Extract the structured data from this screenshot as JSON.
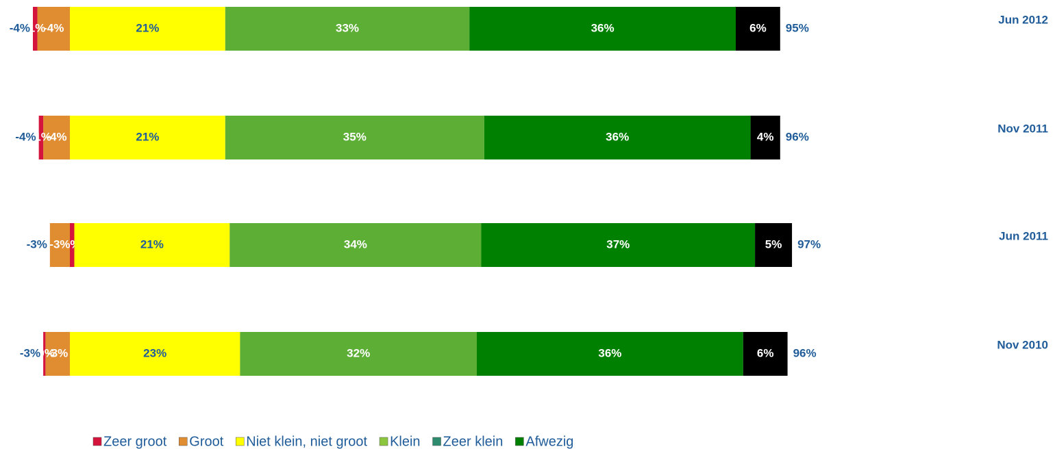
{
  "chart_data": {
    "type": "diverging-stacked-bar",
    "categories": [
      "Jun 2012",
      "Nov 2011",
      "Jun 2011",
      "Nov 2010"
    ],
    "series": [
      {
        "name": "Zeer groot",
        "color": "#d4143c",
        "legend_color": "#d4143c",
        "label_color": "#ffffff",
        "values": [
          -0.6,
          -0.6,
          0.6,
          -0.3
        ],
        "value_labels": [
          "-1%",
          "-1%",
          "1%",
          "-0%"
        ]
      },
      {
        "name": "Groot",
        "color": "#e08c30",
        "legend_color": "#e08c30",
        "label_color": "#ffffff",
        "values": [
          -4.4,
          -3.6,
          -2.7,
          -3.3
        ],
        "value_labels": [
          "-4%",
          "-4%",
          "-3%",
          "-3%"
        ]
      },
      {
        "name": "Niet klein, niet groot",
        "color": "#ffff00",
        "legend_color": "#ffff00",
        "label_color": "#1f5c99",
        "values": [
          21,
          21,
          21,
          23
        ],
        "value_labels": [
          "21%",
          "21%",
          "21%",
          "23%"
        ]
      },
      {
        "name": "Klein",
        "color": "#5dae35",
        "legend_color": "#8cc63f",
        "label_color": "#ffffff",
        "values": [
          33,
          35,
          34,
          32
        ],
        "value_labels": [
          "33%",
          "35%",
          "34%",
          "32%"
        ]
      },
      {
        "name": "Zeer klein",
        "color": "#008000",
        "legend_color": "#2e8b6e",
        "label_color": "#ffffff",
        "values": [
          36,
          36,
          37,
          36
        ],
        "value_labels": [
          "36%",
          "36%",
          "37%",
          "36%"
        ]
      },
      {
        "name": "Afwezig",
        "color": "#000000",
        "legend_color": "#008000",
        "label_color": "#ffffff",
        "values": [
          6,
          4,
          5,
          6
        ],
        "value_labels": [
          "6%",
          "4%",
          "5%",
          "6%"
        ]
      }
    ],
    "negative_totals": {
      "values": [
        -4,
        -4,
        -3,
        -3
      ],
      "value_labels": [
        "-4%",
        "-4%",
        "-3%",
        "-3%"
      ]
    },
    "totals": {
      "values": [
        95,
        96,
        97,
        96
      ],
      "value_labels": [
        "95%",
        "96%",
        "97%",
        "96%"
      ]
    }
  }
}
